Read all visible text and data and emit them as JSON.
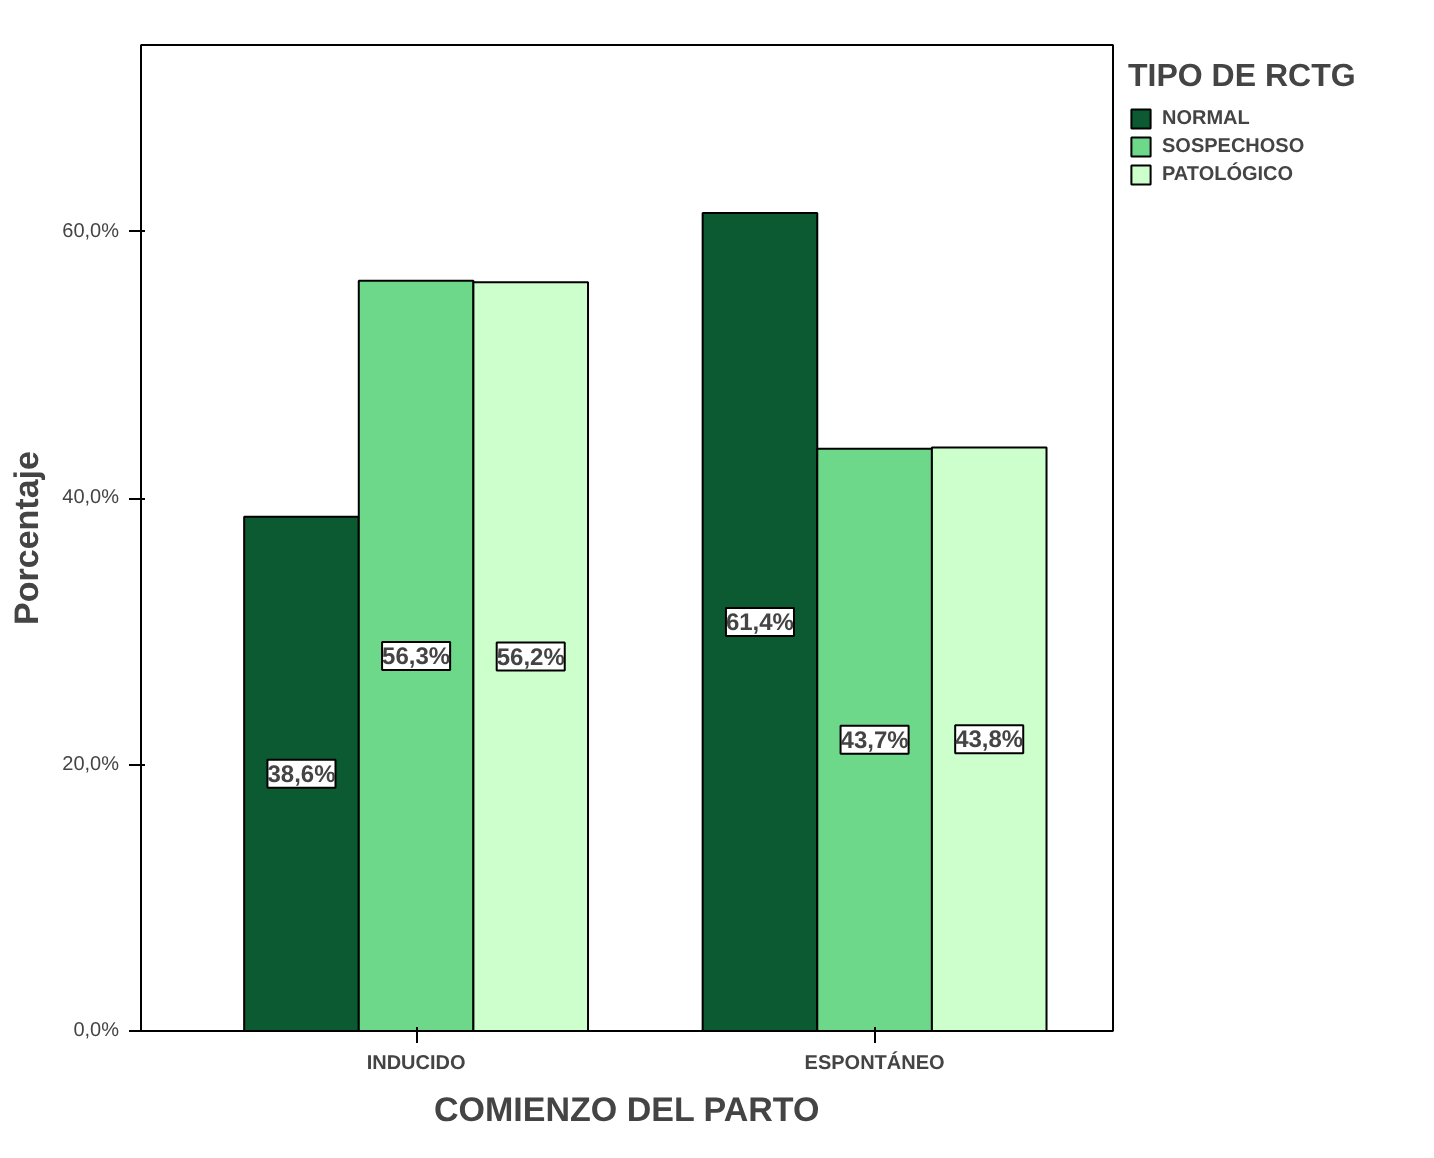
{
  "chart_data": {
    "type": "bar",
    "xlabel": "COMIENZO DEL PARTO",
    "ylabel": "Porcentaje",
    "legend_title": "TIPO DE RCTG",
    "categories": [
      "INDUCIDO",
      "ESPONTÁNEO"
    ],
    "series": [
      {
        "name": "NORMAL",
        "color": "#0b5a32",
        "values": [
          38.6,
          61.4
        ],
        "value_labels": [
          "38,6%",
          "61,4%"
        ]
      },
      {
        "name": "SOSPECHOSO",
        "color": "#6ed88a",
        "values": [
          56.3,
          43.7
        ],
        "value_labels": [
          "56,3%",
          "43,7%"
        ]
      },
      {
        "name": "PATOLÓGICO",
        "color": "#ccffcc",
        "values": [
          56.2,
          43.8
        ],
        "value_labels": [
          "56,2%",
          "43,8%"
        ]
      }
    ],
    "ylim": [
      0,
      74
    ],
    "yticks": [
      {
        "value": 0,
        "label": "0,0%"
      },
      {
        "value": 20,
        "label": "20,0%"
      },
      {
        "value": 40,
        "label": "40,0%"
      },
      {
        "value": 60,
        "label": "60,0%"
      }
    ],
    "grid": false,
    "legend": "top right"
  }
}
